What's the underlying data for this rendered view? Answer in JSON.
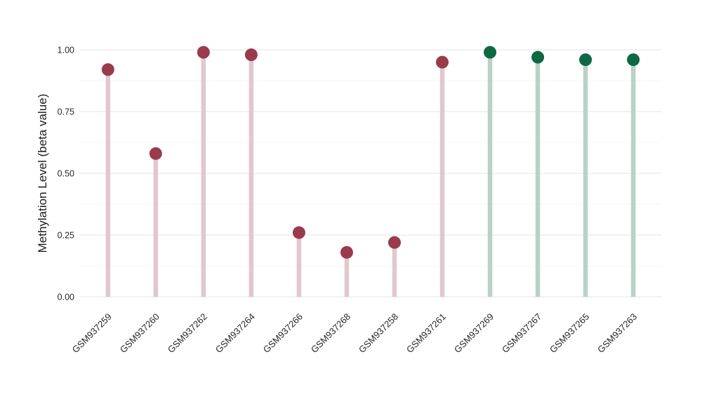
{
  "figure": {
    "background_color": "#ffffff"
  },
  "chart_data": {
    "type": "lollipop",
    "title": "",
    "xlabel": "",
    "ylabel": "Methylation Level (beta value)",
    "ylim": [
      0,
      1
    ],
    "grid": "on",
    "legend": "none",
    "categories": [
      "GSM937259",
      "GSM937260",
      "GSM937262",
      "GSM937264",
      "GSM937266",
      "GSM937268",
      "GSM937258",
      "GSM937261",
      "GSM937269",
      "GSM937267",
      "GSM937265",
      "GSM937263"
    ],
    "values": [
      0.92,
      0.58,
      0.99,
      0.98,
      0.26,
      0.18,
      0.22,
      0.95,
      0.99,
      0.97,
      0.96,
      0.96
    ],
    "groups": [
      "A",
      "A",
      "A",
      "A",
      "A",
      "A",
      "A",
      "A",
      "B",
      "B",
      "B",
      "B"
    ],
    "group_colors": {
      "A": {
        "dot": "#9a3a4d",
        "stem": "#e2c7ce"
      },
      "B": {
        "dot": "#0d6844",
        "stem": "#b8d3c6"
      }
    },
    "yticks": {
      "values": [
        0,
        0.25,
        0.5,
        0.75,
        1.0
      ],
      "labels": [
        "0.00",
        "0.25",
        "0.50",
        "0.75",
        "1.00"
      ]
    },
    "y_minor_ticks": [
      0.125,
      0.375,
      0.625,
      0.875
    ],
    "grid_colors": {
      "major": "#eaeaea",
      "minor": "#f4f4f4"
    },
    "text_color": "#262626"
  }
}
